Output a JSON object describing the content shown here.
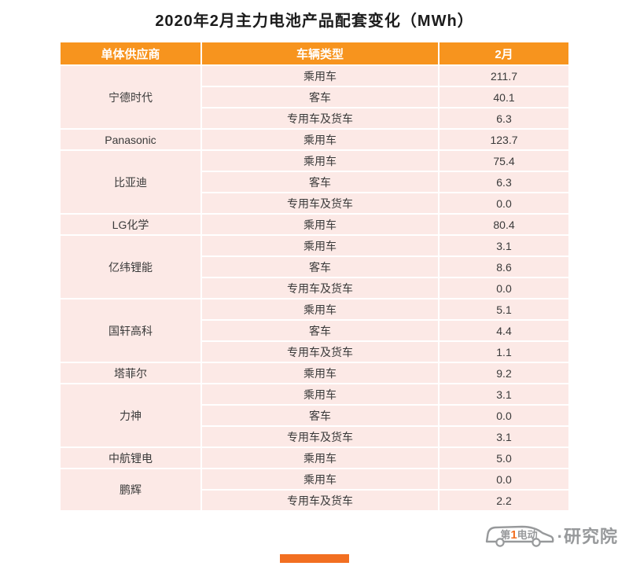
{
  "title": "2020年2月主力电池产品配套变化（MWh）",
  "chart_data": {
    "type": "table",
    "title": "2020年2月主力电池产品配套变化（MWh）",
    "unit": "MWh",
    "columns": [
      "单体供应商",
      "车辆类型",
      "2月"
    ],
    "groups": [
      {
        "supplier": "宁德时代",
        "rows": [
          {
            "vehicle_type": "乘用车",
            "value": "211.7"
          },
          {
            "vehicle_type": "客车",
            "value": "40.1"
          },
          {
            "vehicle_type": "专用车及货车",
            "value": "6.3"
          }
        ]
      },
      {
        "supplier": "Panasonic",
        "rows": [
          {
            "vehicle_type": "乘用车",
            "value": "123.7"
          }
        ]
      },
      {
        "supplier": "比亚迪",
        "rows": [
          {
            "vehicle_type": "乘用车",
            "value": "75.4"
          },
          {
            "vehicle_type": "客车",
            "value": "6.3"
          },
          {
            "vehicle_type": "专用车及货车",
            "value": "0.0"
          }
        ]
      },
      {
        "supplier": "LG化学",
        "rows": [
          {
            "vehicle_type": "乘用车",
            "value": "80.4"
          }
        ]
      },
      {
        "supplier": "亿纬锂能",
        "rows": [
          {
            "vehicle_type": "乘用车",
            "value": "3.1"
          },
          {
            "vehicle_type": "客车",
            "value": "8.6"
          },
          {
            "vehicle_type": "专用车及货车",
            "value": "0.0"
          }
        ]
      },
      {
        "supplier": "国轩高科",
        "rows": [
          {
            "vehicle_type": "乘用车",
            "value": "5.1"
          },
          {
            "vehicle_type": "客车",
            "value": "4.4"
          },
          {
            "vehicle_type": "专用车及货车",
            "value": "1.1"
          }
        ]
      },
      {
        "supplier": "塔菲尔",
        "rows": [
          {
            "vehicle_type": "乘用车",
            "value": "9.2"
          }
        ]
      },
      {
        "supplier": "力神",
        "rows": [
          {
            "vehicle_type": "乘用车",
            "value": "3.1"
          },
          {
            "vehicle_type": "客车",
            "value": "0.0"
          },
          {
            "vehicle_type": "专用车及货车",
            "value": "3.1"
          }
        ]
      },
      {
        "supplier": "中航锂电",
        "rows": [
          {
            "vehicle_type": "乘用车",
            "value": "5.0"
          }
        ]
      },
      {
        "supplier": "鹏辉",
        "rows": [
          {
            "vehicle_type": "乘用车",
            "value": "0.0"
          },
          {
            "vehicle_type": "专用车及货车",
            "value": "2.2"
          }
        ]
      }
    ]
  },
  "watermark": {
    "brand_prefix": "第",
    "brand_number": "1",
    "brand_rest": "电动",
    "suffix": "·研究院"
  },
  "colors": {
    "header_bg": "#F7941E",
    "row_bg": "#FCE9E6",
    "accent": "#F26F21",
    "watermark_gray": "#97999B"
  }
}
